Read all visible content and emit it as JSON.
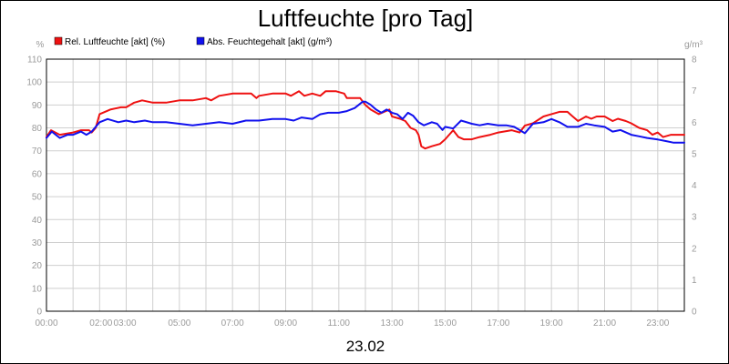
{
  "chart_data": {
    "type": "line",
    "title": "Luftfeuchte [pro Tag]",
    "xlabel": "23.02",
    "y_left_unit": "%",
    "y_right_unit": "g/m³",
    "x_ticks": [
      "00:00",
      "02:00",
      "03:00",
      "05:00",
      "07:00",
      "09:00",
      "11:00",
      "13:00",
      "15:00",
      "17:00",
      "19:00",
      "21:00",
      "23:00"
    ],
    "x_tick_hours": [
      0,
      2,
      3,
      5,
      7,
      9,
      11,
      13,
      15,
      17,
      19,
      21,
      23
    ],
    "xlim_hours": [
      0,
      24
    ],
    "y_left_ticks": [
      "0",
      "10",
      "20",
      "30",
      "40",
      "50",
      "60",
      "70",
      "80",
      "90",
      "100",
      "110"
    ],
    "y_left_lim": [
      0,
      110
    ],
    "y_right_ticks": [
      "0",
      "1",
      "2",
      "3",
      "4",
      "5",
      "6",
      "7",
      "8"
    ],
    "y_right_lim": [
      0,
      8
    ],
    "grid": true,
    "legend_placement": "top-left",
    "series": [
      {
        "name": "Rel. Luftfeuchte [akt] (%)",
        "color": "#ee1111",
        "axis": "left",
        "x_hours": [
          0,
          0.17,
          0.5,
          1.0,
          1.3,
          1.6,
          1.7,
          1.85,
          2.0,
          2.4,
          2.8,
          3.0,
          3.3,
          3.6,
          4.0,
          4.5,
          5.0,
          5.5,
          6.0,
          6.2,
          6.5,
          7.0,
          7.5,
          7.7,
          7.9,
          8.0,
          8.5,
          9.0,
          9.2,
          9.5,
          9.7,
          10.0,
          10.3,
          10.5,
          10.9,
          11.2,
          11.3,
          11.5,
          11.8,
          12.0,
          12.2,
          12.5,
          12.7,
          12.9,
          13.0,
          13.3,
          13.5,
          13.7,
          13.9,
          14.0,
          14.1,
          14.25,
          14.5,
          14.8,
          15.0,
          15.3,
          15.5,
          15.7,
          16.0,
          16.3,
          16.7,
          17.0,
          17.5,
          17.8,
          18.0,
          18.3,
          18.7,
          19.0,
          19.3,
          19.6,
          19.8,
          20.0,
          20.3,
          20.5,
          20.7,
          21.0,
          21.3,
          21.5,
          21.8,
          22.0,
          22.3,
          22.6,
          22.8,
          23.0,
          23.2,
          23.5,
          23.7,
          24.0
        ],
        "values": [
          76,
          79,
          77,
          78,
          79,
          79,
          78,
          80,
          86,
          88,
          89,
          89,
          91,
          92,
          91,
          91,
          92,
          92,
          93,
          92,
          94,
          95,
          95,
          95,
          93,
          94,
          95,
          95,
          94,
          96,
          94,
          95,
          94,
          96,
          96,
          95,
          93,
          93,
          93,
          90,
          88,
          86,
          87,
          88,
          85,
          84,
          83,
          80,
          79,
          77,
          72,
          71,
          72,
          73,
          75,
          79,
          76,
          75,
          75,
          76,
          77,
          78,
          79,
          78,
          81,
          82,
          85,
          86,
          87,
          87,
          85,
          83,
          85,
          84,
          85,
          85,
          83,
          84,
          83,
          82,
          80,
          79,
          77,
          78,
          76,
          77,
          77,
          77
        ]
      },
      {
        "name": "Abs. Feuchtegehalt [akt] (g/m³)",
        "color": "#1111ee",
        "axis": "right",
        "x_hours": [
          0,
          0.2,
          0.5,
          0.8,
          1.0,
          1.3,
          1.5,
          1.7,
          2.0,
          2.3,
          2.7,
          3.0,
          3.3,
          3.7,
          4.0,
          4.5,
          5.0,
          5.5,
          6.0,
          6.5,
          7.0,
          7.5,
          8.0,
          8.5,
          9.0,
          9.3,
          9.6,
          10.0,
          10.3,
          10.6,
          11.0,
          11.3,
          11.6,
          11.9,
          12.0,
          12.2,
          12.4,
          12.6,
          12.8,
          13.0,
          13.2,
          13.4,
          13.6,
          13.8,
          14.0,
          14.2,
          14.5,
          14.7,
          14.9,
          15.0,
          15.3,
          15.6,
          16.0,
          16.3,
          16.6,
          17.0,
          17.3,
          17.6,
          18.0,
          18.3,
          18.7,
          19.0,
          19.3,
          19.6,
          20.0,
          20.3,
          20.6,
          21.0,
          21.3,
          21.6,
          22.0,
          22.3,
          22.6,
          23.0,
          23.3,
          23.6,
          24.0
        ],
        "values": [
          5.5,
          5.7,
          5.5,
          5.6,
          5.6,
          5.7,
          5.6,
          5.7,
          6.0,
          6.1,
          6.0,
          6.05,
          6.0,
          6.05,
          6.0,
          6.0,
          5.95,
          5.9,
          5.95,
          6.0,
          5.95,
          6.05,
          6.05,
          6.1,
          6.1,
          6.05,
          6.15,
          6.1,
          6.25,
          6.3,
          6.3,
          6.35,
          6.45,
          6.65,
          6.65,
          6.55,
          6.4,
          6.3,
          6.4,
          6.3,
          6.25,
          6.1,
          6.3,
          6.2,
          6.0,
          5.9,
          6.0,
          5.95,
          5.75,
          5.85,
          5.8,
          6.05,
          5.95,
          5.9,
          5.95,
          5.9,
          5.9,
          5.85,
          5.65,
          5.95,
          6.0,
          6.1,
          6.0,
          5.85,
          5.85,
          5.95,
          5.9,
          5.85,
          5.7,
          5.75,
          5.6,
          5.55,
          5.5,
          5.45,
          5.4,
          5.35,
          5.35
        ]
      }
    ]
  }
}
